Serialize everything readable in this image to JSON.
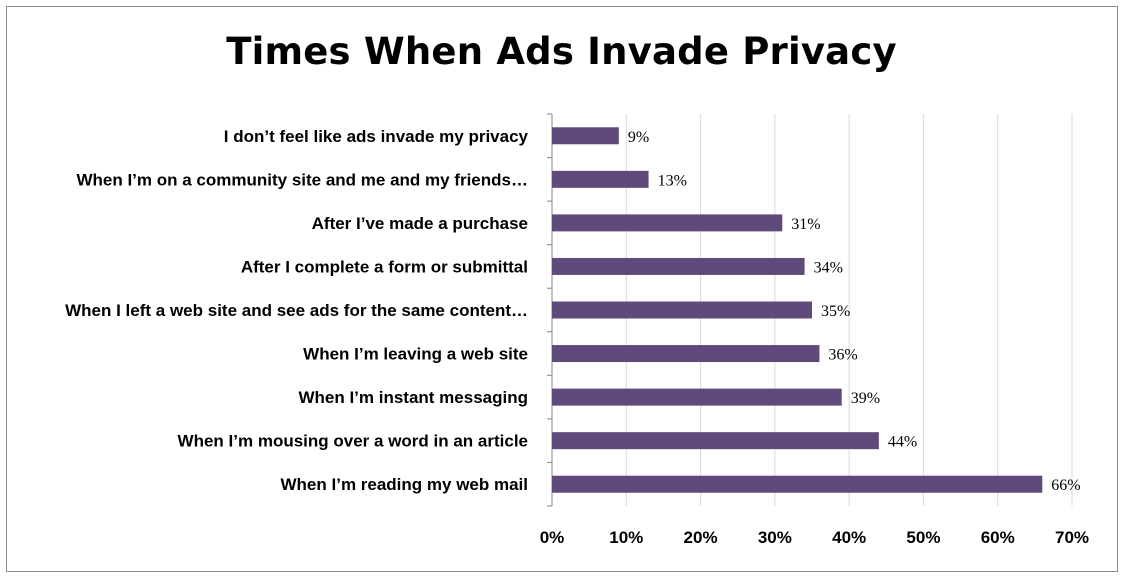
{
  "chart_data": {
    "type": "bar",
    "orientation": "horizontal",
    "title": "Times When Ads Invade Privacy",
    "categories": [
      "I don’t feel like ads invade my privacy",
      "When I’m on a community site and me and my friends…",
      "After I’ve made a purchase",
      "After I complete a form or submittal",
      "When I left a web site and see ads for the same content…",
      "When I’m leaving a web site",
      "When I’m instant messaging",
      "When I’m mousing over a word in an article",
      "When I’m reading my web mail"
    ],
    "values": [
      9,
      13,
      31,
      34,
      35,
      36,
      39,
      44,
      66
    ],
    "value_labels": [
      "9%",
      "13%",
      "31%",
      "34%",
      "35%",
      "36%",
      "39%",
      "44%",
      "66%"
    ],
    "xlim": [
      0,
      70
    ],
    "x_ticks": [
      0,
      10,
      20,
      30,
      40,
      50,
      60,
      70
    ],
    "x_tick_labels": [
      "0%",
      "10%",
      "20%",
      "30%",
      "40%",
      "50%",
      "60%",
      "70%"
    ],
    "grid": true,
    "bar_color": "#604a7b"
  }
}
